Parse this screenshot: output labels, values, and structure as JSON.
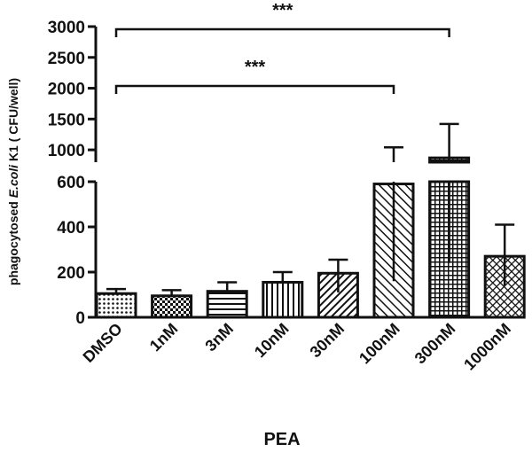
{
  "chart_data": {
    "type": "bar",
    "xlabel": "PEA",
    "ylabel_parts": [
      "phagocytosed ",
      "E.coli",
      " K1 ( CFU/well)"
    ],
    "categories": [
      "DMSO",
      "1nM",
      "3nM",
      "10nM",
      "30nM",
      "100nM",
      "300nM",
      "1000nM"
    ],
    "values": [
      105,
      95,
      115,
      155,
      195,
      590,
      870,
      270
    ],
    "error_plus": [
      20,
      25,
      40,
      45,
      60,
      450,
      550,
      140
    ],
    "error_minus": [
      0,
      0,
      0,
      0,
      85,
      430,
      630,
      130
    ],
    "bar_patterns": [
      "dots",
      "checker",
      "hstripes",
      "vstripes",
      "diag-right",
      "diag-left",
      "grid",
      "crosshatch"
    ],
    "y_axis_broken": true,
    "y_lower_range": [
      0,
      600
    ],
    "y_lower_ticks": [
      "0",
      "200",
      "400",
      "600"
    ],
    "y_upper_range": [
      800,
      3000
    ],
    "y_upper_ticks": [
      "1000",
      "1500",
      "2000",
      "2500",
      "3000"
    ],
    "significance": [
      {
        "from": "DMSO",
        "to": "300nM",
        "label": "***"
      },
      {
        "from": "DMSO",
        "to": "100nM",
        "label": "***"
      }
    ],
    "grid": false,
    "bar_color": "#111111"
  }
}
